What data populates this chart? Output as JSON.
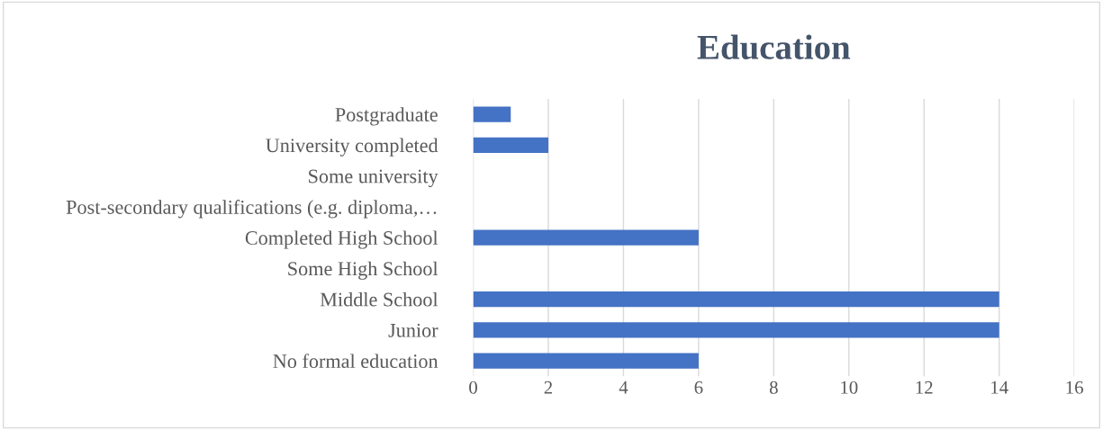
{
  "chart_data": {
    "type": "bar",
    "orientation": "horizontal",
    "title": "Education",
    "categories": [
      "Postgraduate",
      "University completed",
      "Some university",
      "Post-secondary qualifications (e.g. diploma,…",
      "Completed High School",
      "Some High School",
      "Middle School",
      "Junior",
      "No formal education"
    ],
    "values": [
      1,
      2,
      0,
      0,
      6,
      0,
      14,
      14,
      6
    ],
    "color": "#4472c4",
    "xlim": [
      0,
      16
    ],
    "xticks": [
      0,
      2,
      4,
      6,
      8,
      10,
      12,
      14,
      16
    ],
    "grid": "x"
  }
}
